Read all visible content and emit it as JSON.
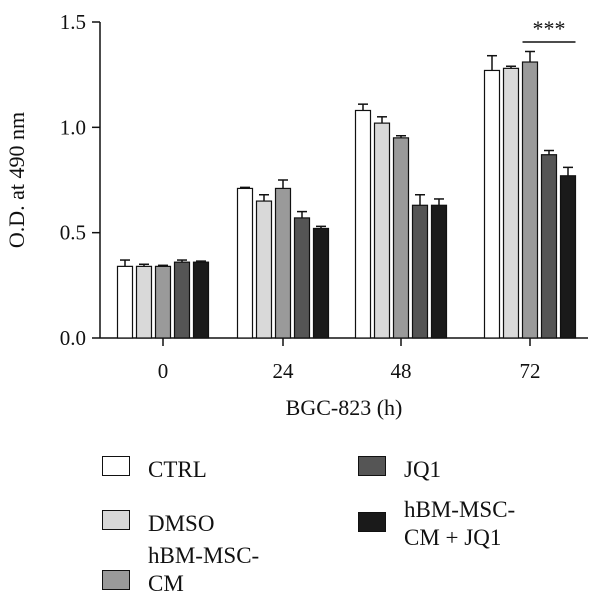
{
  "chart_data": {
    "type": "bar",
    "xlabel": "BGC-823 (h)",
    "ylabel": "O.D. at 490 nm",
    "ylim": [
      0,
      1.5
    ],
    "yticks": [
      "0.0",
      "0.5",
      "1.0",
      "1.5"
    ],
    "categories": [
      "0",
      "24",
      "48",
      "72"
    ],
    "series": [
      {
        "name": "CTRL",
        "color": "#ffffff",
        "values": [
          0.34,
          0.71,
          1.08,
          1.27
        ],
        "errors": [
          0.03,
          0.005,
          0.03,
          0.07
        ]
      },
      {
        "name": "DMSO",
        "color": "#d9d9d9",
        "values": [
          0.34,
          0.65,
          1.02,
          1.28
        ],
        "errors": [
          0.01,
          0.03,
          0.03,
          0.01
        ]
      },
      {
        "name": "hBM-MSC-\nCM",
        "color": "#9a9a9a",
        "values": [
          0.34,
          0.71,
          0.95,
          1.31
        ],
        "errors": [
          0.005,
          0.04,
          0.01,
          0.05
        ]
      },
      {
        "name": "JQ1",
        "color": "#555555",
        "values": [
          0.36,
          0.57,
          0.63,
          0.87
        ],
        "errors": [
          0.01,
          0.03,
          0.05,
          0.02
        ]
      },
      {
        "name": "hBM-MSC-\nCM + JQ1",
        "color": "#1a1a1a",
        "values": [
          0.36,
          0.52,
          0.63,
          0.77
        ],
        "errors": [
          0.005,
          0.01,
          0.03,
          0.04
        ]
      }
    ],
    "significance": {
      "label": "***",
      "category": "72",
      "from_series": 2,
      "to_series": 4
    }
  }
}
